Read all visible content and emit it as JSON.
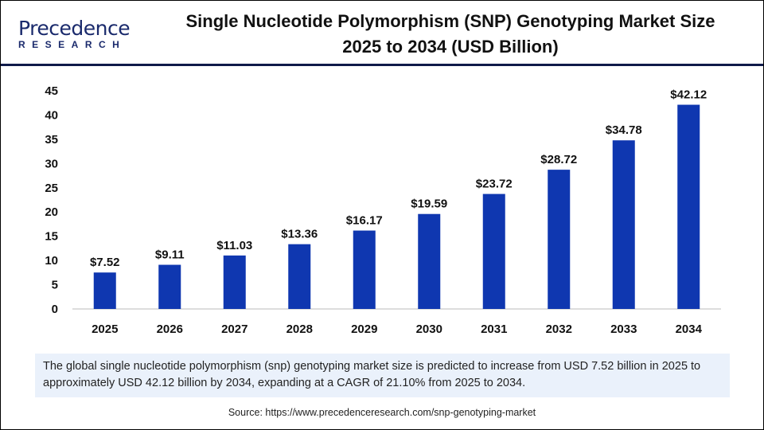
{
  "logo": {
    "line1": "Precedence",
    "line2": "RESEARCH"
  },
  "title": [
    "Single Nucleotide Polymorphism (SNP) Genotyping Market Size",
    "2025 to 2034 (USD Billion)"
  ],
  "chart_data": {
    "type": "bar",
    "title": "Single Nucleotide Polymorphism (SNP) Genotyping Market Size 2025 to 2034 (USD Billion)",
    "categories": [
      "2025",
      "2026",
      "2027",
      "2028",
      "2029",
      "2030",
      "2031",
      "2032",
      "2033",
      "2034"
    ],
    "values": [
      7.52,
      9.11,
      11.03,
      13.36,
      16.17,
      19.59,
      23.72,
      28.72,
      34.78,
      42.12
    ],
    "data_labels": [
      "$7.52",
      "$9.11",
      "$11.03",
      "$13.36",
      "$16.17",
      "$19.59",
      "$23.72",
      "$28.72",
      "$34.78",
      "$42.12"
    ],
    "ylim": [
      0,
      45
    ],
    "yticks": [
      0,
      5,
      10,
      15,
      20,
      25,
      30,
      35,
      40,
      45
    ],
    "grid": false,
    "bar_color": "#0f37b0",
    "xlabel": "",
    "ylabel": ""
  },
  "note": "The global single nucleotide polymorphism (snp) genotyping market size is predicted to increase from USD 7.52 billion in 2025 to approximately USD 42.12 billion by 2034, expanding at a CAGR of 21.10% from 2025 to 2034.",
  "source": "Source: https://www.precedenceresearch.com/snp-genotyping-market"
}
